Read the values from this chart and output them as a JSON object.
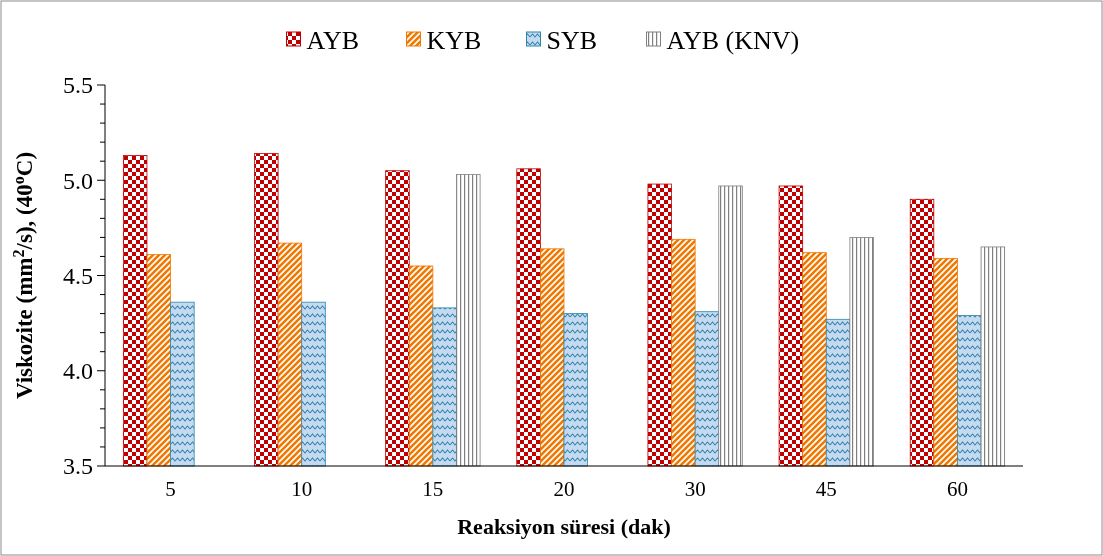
{
  "chart_data": {
    "type": "bar",
    "xlabel": "Reaksiyon süresi (dak)",
    "ylabel": "Viskozite (mm$^{2}$/s), (40$^{o}$C)",
    "categories": [
      "5",
      "10",
      "15",
      "20",
      "30",
      "45",
      "60"
    ],
    "series": [
      {
        "name": "AYB",
        "color": "#c00000",
        "values": [
          5.13,
          5.14,
          5.05,
          5.06,
          4.98,
          4.97,
          4.9
        ]
      },
      {
        "name": "KYB",
        "color": "#f07800",
        "values": [
          4.61,
          4.67,
          4.55,
          4.64,
          4.69,
          4.62,
          4.59
        ]
      },
      {
        "name": "SYB",
        "color": "#2e86ab",
        "values": [
          4.36,
          4.36,
          4.33,
          4.3,
          4.31,
          4.27,
          4.29
        ]
      },
      {
        "name": "AYB (KNV)",
        "color": "#808080",
        "values": [
          null,
          null,
          5.03,
          null,
          4.97,
          4.7,
          4.65
        ]
      }
    ],
    "ylim": [
      3.5,
      5.5
    ],
    "yticks": [
      3.5,
      {
        "value": 3.6,
        "label": null
      },
      {
        "value": 3.7,
        "label": null
      },
      {
        "value": 3.8,
        "label": null
      },
      {
        "value": 3.9,
        "label": null
      },
      "4.0",
      {
        "value": 4.1,
        "label": null
      },
      {
        "value": 4.2,
        "label": null
      },
      {
        "value": 4.3,
        "label": null
      },
      {
        "value": 4.4,
        "label": null
      },
      4.5,
      {
        "value": 4.6,
        "label": null
      },
      {
        "value": 4.7,
        "label": null
      },
      {
        "value": 4.8,
        "label": null
      },
      {
        "value": 4.9,
        "label": null
      },
      "5.0",
      {
        "value": 5.1,
        "label": null
      },
      {
        "value": 5.2,
        "label": null
      },
      {
        "value": 5.3,
        "label": null
      },
      {
        "value": 5.4,
        "label": null
      },
      5.5
    ],
    "grid": false,
    "legend": "top"
  }
}
